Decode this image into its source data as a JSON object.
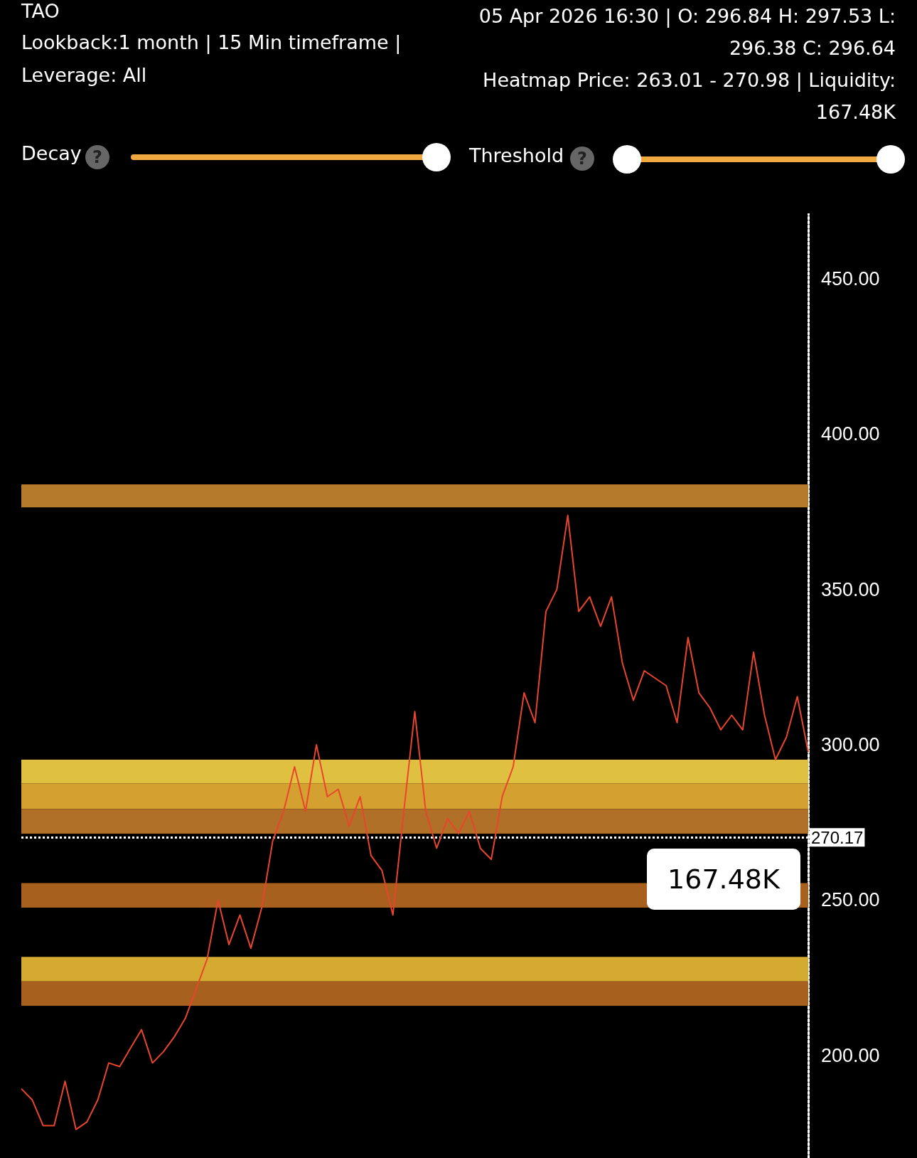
{
  "chart_data": {
    "type": "line",
    "title": "TAO",
    "subtitle": "Lookback:1 month | 15 Min timeframe |",
    "annotations": [
      "Leverage: All",
      "05 Apr 2026 16:30 | O: 296.84 H: 297.53 L: 296.38 C: 296.64",
      "Heatmap Price: 263.01 - 270.98 | Liquidity: 167.48K",
      "Decay",
      "?",
      "Threshold",
      "?",
      "167.48K"
    ],
    "categories": [
      null,
      null,
      null,
      null,
      null,
      null,
      null,
      null,
      null,
      null,
      null,
      null,
      null,
      null,
      null,
      null,
      null,
      null,
      null,
      null,
      null,
      null,
      null,
      null,
      null,
      null,
      null,
      null,
      null,
      null,
      null,
      null,
      null,
      null,
      null,
      null,
      null,
      null,
      null,
      null,
      null,
      null,
      null,
      null,
      null,
      null,
      null,
      null,
      null,
      null,
      null,
      null,
      null,
      null,
      null,
      null,
      null,
      null,
      null,
      null,
      null,
      null,
      null,
      null,
      null,
      null,
      null,
      null,
      null,
      null,
      null,
      null,
      null
    ],
    "series": [
      {
        "color": "#e8452c",
        "values": [
          189.3,
          185.7,
          177.4,
          177.4,
          191.7,
          176.2,
          178.6,
          185.7,
          197.6,
          196.4,
          202.4,
          208.3,
          197.6,
          201.2,
          206,
          211.9,
          221.4,
          231,
          250,
          235.7,
          245.2,
          234.5,
          247.6,
          269,
          278.6,
          292.9,
          278.6,
          300,
          283.3,
          285.7,
          273.8,
          283.3,
          264.3,
          259.5,
          245.2,
          278.6,
          310.7,
          278.6,
          266.7,
          276.2,
          271.4,
          278.6,
          266.7,
          263.1,
          283.3,
          292.9,
          316.7,
          307.1,
          342.9,
          350,
          373.8,
          342.9,
          347.6,
          338.1,
          347.6,
          326.2,
          314.3,
          323.8,
          321.4,
          319,
          307.1,
          334.5,
          316.7,
          311.9,
          304.8,
          309.5,
          304.8,
          329.8,
          309.5,
          295.2,
          302.4,
          315.5,
          297.6
        ]
      }
    ],
    "marker": "none",
    "ylim": [
      167,
      471
    ],
    "yticks": [
      {
        "value": 200,
        "label": "200.00"
      },
      {
        "value": 250,
        "label": "250.00"
      },
      {
        "value": 300,
        "label": "300.00"
      },
      {
        "value": 350,
        "label": "350.00"
      },
      {
        "value": 400,
        "label": "400.00"
      },
      {
        "value": 450,
        "label": "450.00"
      }
    ],
    "tick_labels": "y",
    "ref_lines": [
      {
        "axis": "y",
        "value": 270.17,
        "label": "270.17",
        "color": "#ffffff",
        "line_style": "dotted"
      }
    ],
    "bands": [
      {
        "axis": "y",
        "from": 376.4,
        "to": 383.8,
        "color": "#b57a2a"
      },
      {
        "axis": "y",
        "from": 287.6,
        "to": 295.2,
        "color": "#e0c040"
      },
      {
        "axis": "y",
        "from": 279.3,
        "to": 287.6,
        "color": "#d4a030"
      },
      {
        "axis": "y",
        "from": 271.4,
        "to": 279.3,
        "color": "#b07028"
      },
      {
        "axis": "y",
        "from": 247.6,
        "to": 255.5,
        "color": "#a8601f"
      },
      {
        "axis": "y",
        "from": 223.8,
        "to": 231.7,
        "color": "#d4aa30"
      },
      {
        "axis": "y",
        "from": 216,
        "to": 223.8,
        "color": "#a8601f"
      }
    ]
  }
}
